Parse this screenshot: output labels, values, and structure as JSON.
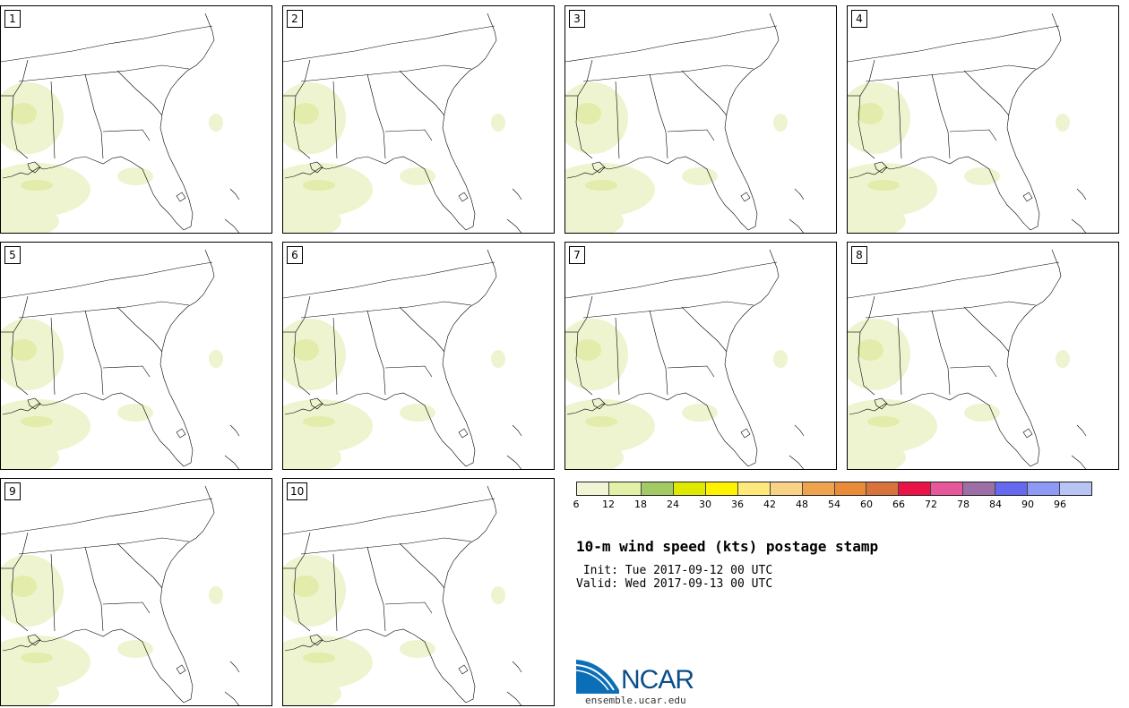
{
  "panels": [
    {
      "label": "1"
    },
    {
      "label": "2"
    },
    {
      "label": "3"
    },
    {
      "label": "4"
    },
    {
      "label": "5"
    },
    {
      "label": "6"
    },
    {
      "label": "7"
    },
    {
      "label": "8"
    },
    {
      "label": "9"
    },
    {
      "label": "10"
    }
  ],
  "legend": {
    "colors": [
      "#f1f5d6",
      "#e3f0a8",
      "#a3c964",
      "#dfe900",
      "#fff200",
      "#ffe87c",
      "#f8d285",
      "#efa34f",
      "#e98b39",
      "#d7733b",
      "#ea1347",
      "#e7589a",
      "#9d6fa6",
      "#6469ef",
      "#8d9af5",
      "#b7c4f4"
    ],
    "ticks": [
      "6",
      "12",
      "18",
      "24",
      "30",
      "36",
      "42",
      "48",
      "54",
      "60",
      "66",
      "72",
      "78",
      "84",
      "90",
      "96"
    ]
  },
  "title": "10-m wind speed (kts) postage stamp",
  "init": " Init: Tue 2017-09-12 00 UTC",
  "valid": "Valid: Wed 2017-09-13 00 UTC",
  "logo": {
    "name": "NCAR",
    "url": "ensemble.ucar.edu"
  }
}
